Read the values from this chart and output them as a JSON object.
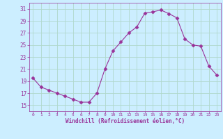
{
  "x": [
    0,
    1,
    2,
    3,
    4,
    5,
    6,
    7,
    8,
    9,
    10,
    11,
    12,
    13,
    14,
    15,
    16,
    17,
    18,
    19,
    20,
    21,
    22,
    23
  ],
  "y": [
    19.5,
    18.0,
    17.5,
    17.0,
    16.5,
    16.0,
    15.5,
    15.5,
    17.0,
    21.0,
    24.0,
    25.5,
    27.0,
    28.0,
    30.3,
    30.5,
    30.8,
    30.2,
    29.5,
    26.0,
    25.0,
    24.8,
    21.5,
    20.0
  ],
  "line_color": "#993399",
  "marker": "D",
  "marker_size": 2.5,
  "bg_color": "#cceeff",
  "grid_color": "#aaddcc",
  "xlabel": "Windchill (Refroidissement éolien,°C)",
  "xlabel_color": "#993399",
  "tick_color": "#993399",
  "label_color": "#993399",
  "ylim": [
    14,
    32
  ],
  "yticks": [
    15,
    17,
    19,
    21,
    23,
    25,
    27,
    29,
    31
  ],
  "xticks": [
    0,
    1,
    2,
    3,
    4,
    5,
    6,
    7,
    8,
    9,
    10,
    11,
    12,
    13,
    14,
    15,
    16,
    17,
    18,
    19,
    20,
    21,
    22,
    23
  ],
  "xlim": [
    -0.5,
    23.5
  ]
}
